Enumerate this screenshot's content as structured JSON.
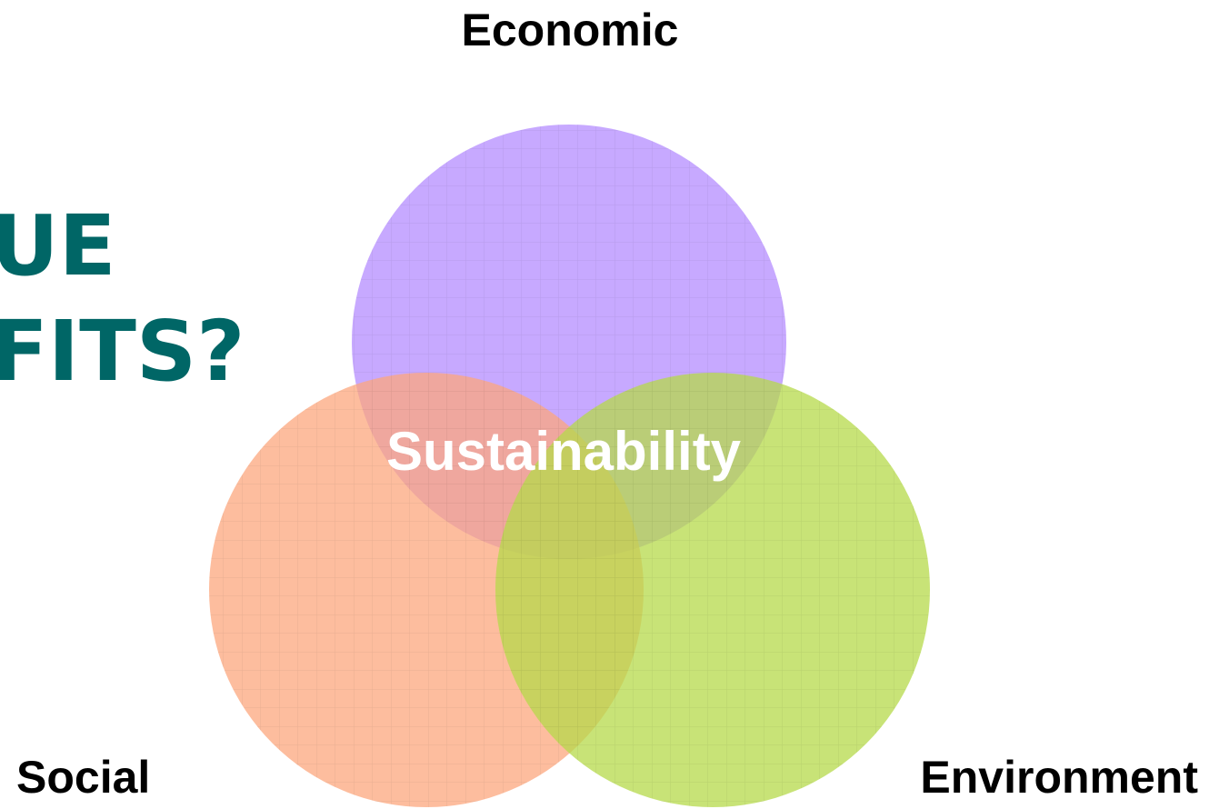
{
  "title_fragments": [
    "UE",
    "FITS?"
  ],
  "circles": [
    {
      "label": "Economic",
      "color": "#b48cff"
    },
    {
      "label": "Social",
      "color": "#fca77e"
    },
    {
      "label": "Environment",
      "color": "#b5d94a"
    }
  ],
  "center_label": "Sustainability"
}
